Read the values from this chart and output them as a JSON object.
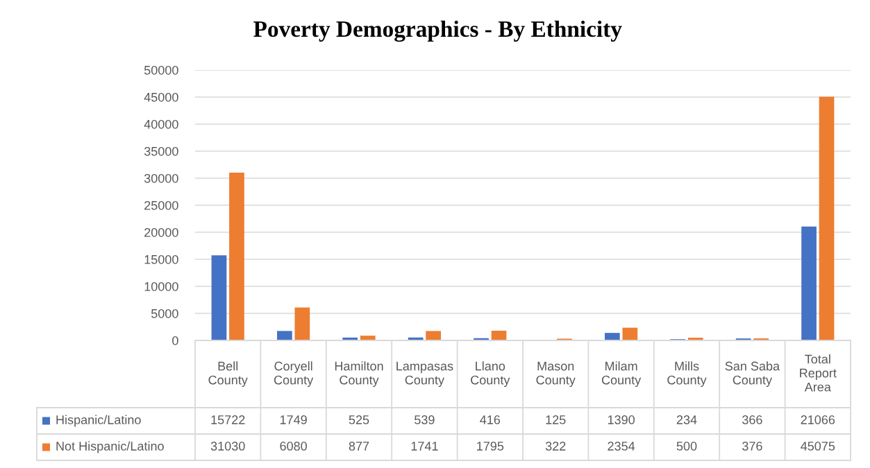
{
  "chart_data": {
    "type": "bar",
    "title": "Poverty Demographics - By Ethnicity",
    "categories": [
      "Bell County",
      "Coryell County",
      "Hamilton County",
      "Lampasas County",
      "Llano County",
      "Mason County",
      "Milam County",
      "Mills County",
      "San Saba County",
      "Total Report Area"
    ],
    "series": [
      {
        "name": "Hispanic/Latino",
        "color": "#4472c4",
        "values": [
          15722,
          1749,
          525,
          539,
          416,
          125,
          1390,
          234,
          366,
          21066
        ]
      },
      {
        "name": "Not Hispanic/Latino",
        "color": "#ed7d31",
        "values": [
          31030,
          6080,
          877,
          1741,
          1795,
          322,
          2354,
          500,
          376,
          45075
        ]
      }
    ],
    "ylim": [
      0,
      50000
    ],
    "yticks": [
      0,
      5000,
      10000,
      15000,
      20000,
      25000,
      30000,
      35000,
      40000,
      45000,
      50000
    ],
    "grid": "y",
    "legend": "bottom",
    "data_labels": true
  }
}
